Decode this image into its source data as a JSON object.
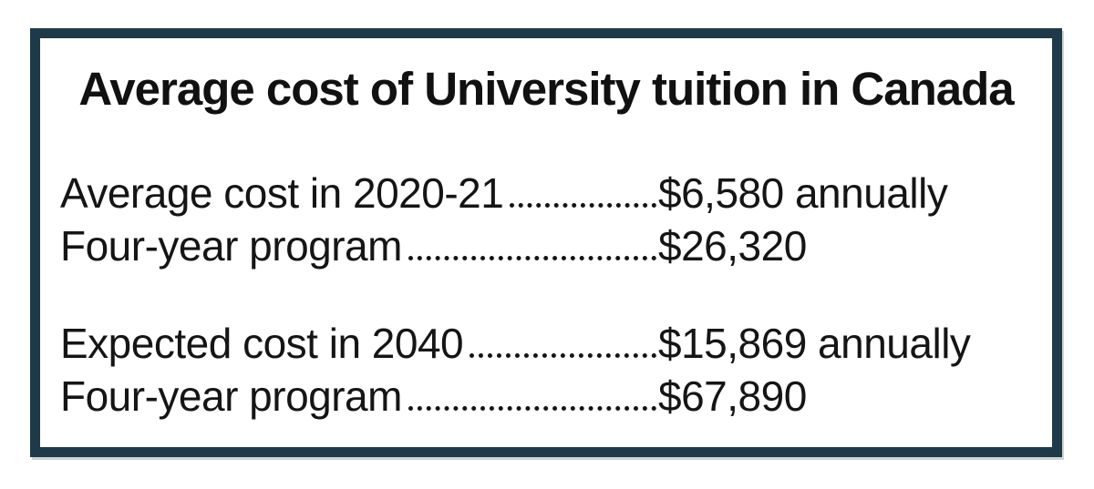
{
  "card": {
    "title": "Average cost of University tuition in Canada",
    "rows": [
      {
        "label": "Average cost in 2020-21",
        "value": "$6,580 annually"
      },
      {
        "label": "Four-year program",
        "value": "$26,320"
      },
      {
        "label": "Expected cost in 2040",
        "value": "$15,869 annually"
      },
      {
        "label": "Four-year program",
        "value": "$67,890"
      }
    ],
    "colors": {
      "border": "#1e3a49",
      "text": "#151515",
      "background": "#ffffff"
    }
  }
}
